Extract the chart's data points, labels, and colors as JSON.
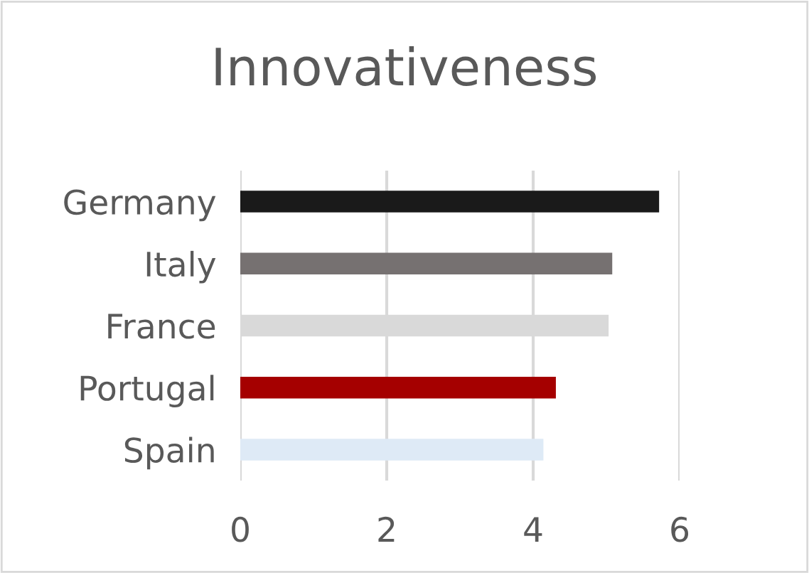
{
  "chart_data": {
    "type": "bar",
    "orientation": "horizontal",
    "title": "Innovativeness",
    "categories": [
      "Germany",
      "Italy",
      "France",
      "Portugal",
      "Spain"
    ],
    "values": [
      5.72,
      5.08,
      5.03,
      4.31,
      4.14
    ],
    "colors": [
      "#1a1a1a",
      "#767171",
      "#d9d9d9",
      "#a50000",
      "#deeaf6"
    ],
    "xlim": [
      0,
      6
    ],
    "xticks": [
      0,
      2,
      4,
      6
    ],
    "grid": "x",
    "legend": false
  }
}
